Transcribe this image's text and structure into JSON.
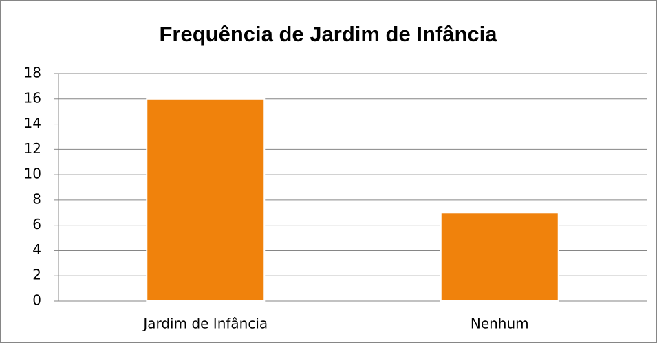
{
  "chart_data": {
    "type": "bar",
    "title": "Frequência de Jardim de Infância",
    "categories": [
      "Jardim de Infância",
      "Nenhum"
    ],
    "values": [
      16,
      7
    ],
    "color": "#f0820c",
    "ylim": [
      0,
      18
    ],
    "yticks": [
      0,
      2,
      4,
      6,
      8,
      10,
      12,
      14,
      16,
      18
    ],
    "grid": true
  }
}
